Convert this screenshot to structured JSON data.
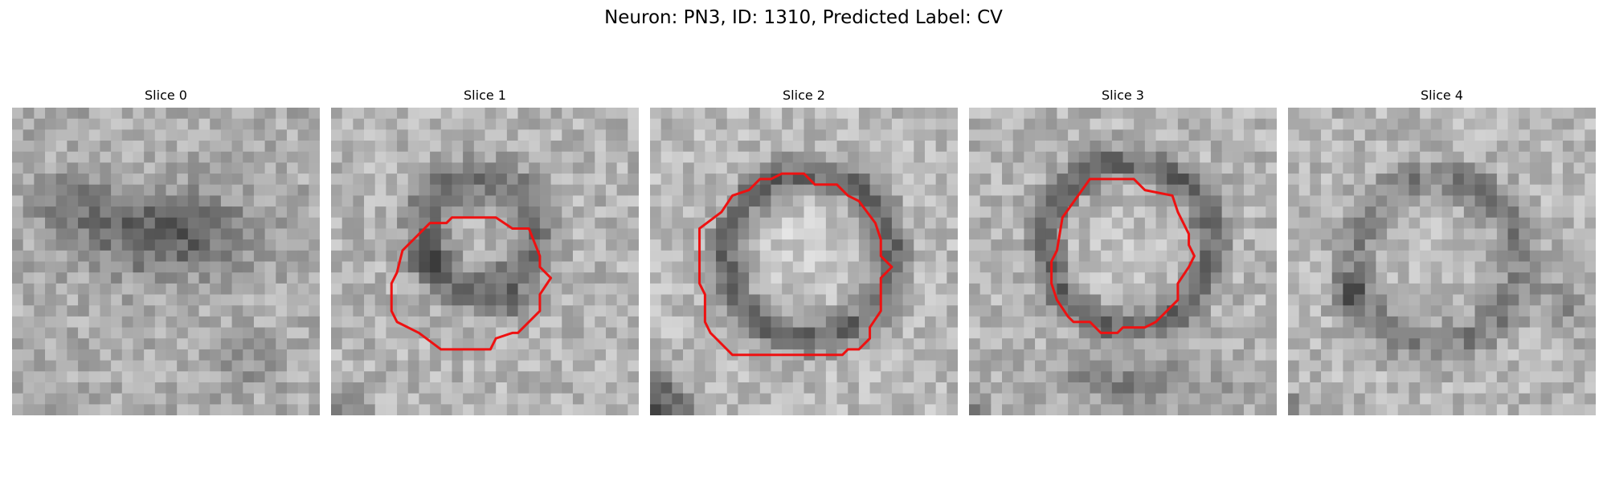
{
  "figure": {
    "title": "Neuron: PN3, ID: 1310, Predicted Label: CV"
  },
  "panels": [
    {
      "title": "Slice 0",
      "has_contour": false
    },
    {
      "title": "Slice 1",
      "has_contour": true
    },
    {
      "title": "Slice 2",
      "has_contour": true
    },
    {
      "title": "Slice 3",
      "has_contour": true
    },
    {
      "title": "Slice 4",
      "has_contour": false
    }
  ],
  "colors": {
    "contour": "#ee1111",
    "background": "#ffffff"
  }
}
